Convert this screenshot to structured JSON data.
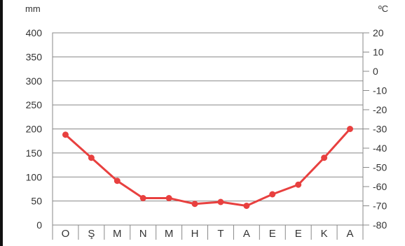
{
  "chart_data": {
    "type": "line",
    "left_unit_label": "mm",
    "right_unit_label": "ºC",
    "categories": [
      "O",
      "Ş",
      "M",
      "N",
      "M",
      "H",
      "T",
      "A",
      "E",
      "E",
      "K",
      "A"
    ],
    "left_axis": {
      "ticks": [
        400,
        350,
        300,
        250,
        200,
        150,
        100,
        50,
        0
      ],
      "ylim": [
        0,
        400
      ]
    },
    "right_axis": {
      "ticks": [
        "20",
        "10",
        "0",
        "-10",
        "-20",
        "-30",
        "-40",
        "-50",
        "-60",
        "-70",
        "-80"
      ],
      "ylim": [
        -80,
        20
      ]
    },
    "grid": true,
    "series": [
      {
        "axis": "right",
        "color": "#e8403f",
        "values": [
          -33,
          -45,
          -57,
          -66,
          -66,
          -69,
          -68,
          -70,
          -64,
          -59,
          -45,
          -30
        ]
      }
    ]
  }
}
